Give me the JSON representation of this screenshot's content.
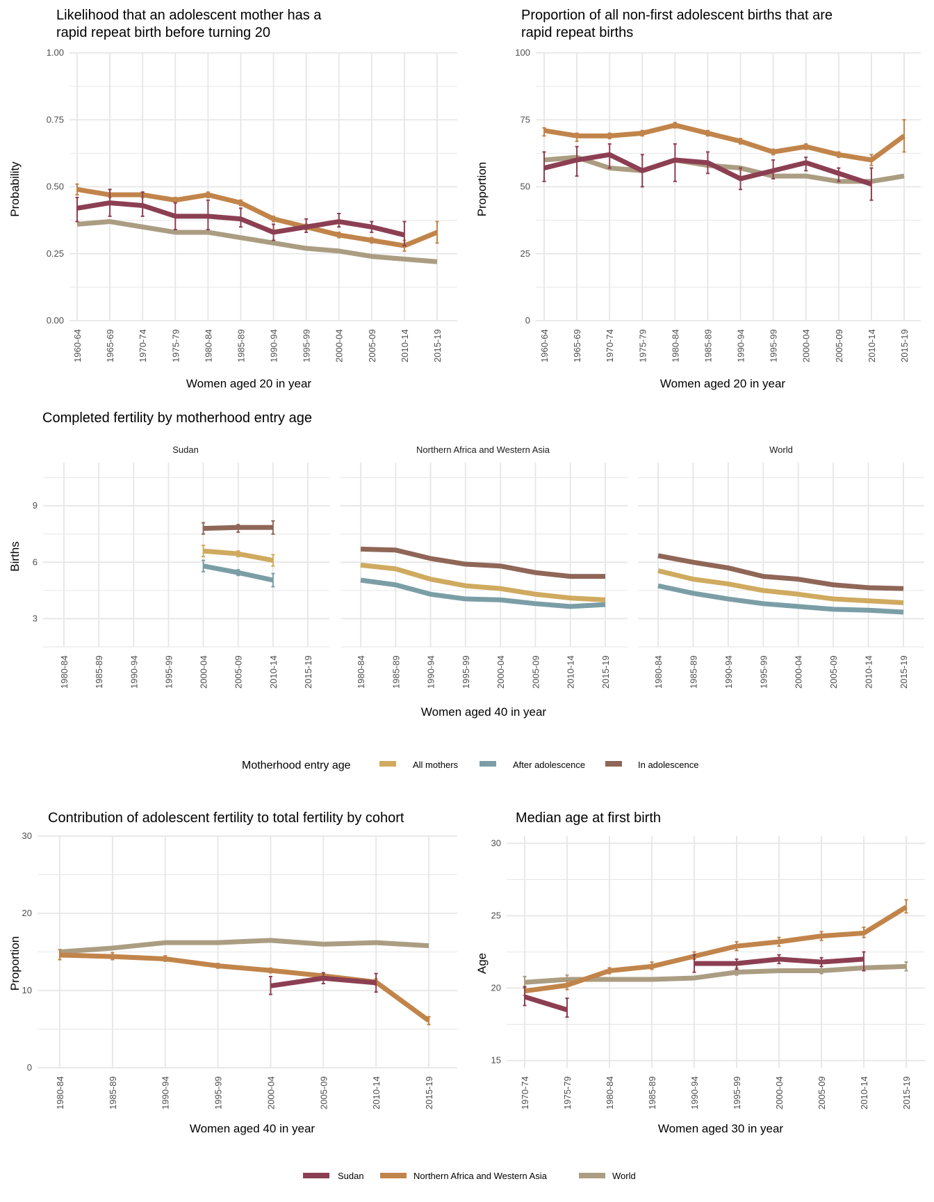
{
  "chart_data": [
    {
      "id": "rapid_repeat_likelihood",
      "type": "line",
      "title": "Likelihood that an adolescent mother has a rapid repeat birth before turning 20",
      "title_lines": [
        "Likelihood that an adolescent mother has a",
        "rapid repeat birth before turning 20"
      ],
      "xlabel": "Women aged 20 in year",
      "ylabel": "Probability",
      "categories": [
        "1960-64",
        "1965-69",
        "1970-74",
        "1975-79",
        "1980-84",
        "1985-89",
        "1990-94",
        "1995-99",
        "2000-04",
        "2005-09",
        "2010-14",
        "2015-19"
      ],
      "ylim": [
        0,
        1
      ],
      "yticks": [
        "0.00",
        "0.25",
        "0.50",
        "0.75",
        "1.00"
      ],
      "ytick_values": [
        0,
        0.25,
        0.5,
        0.75,
        1.0
      ],
      "grid": true,
      "series": [
        {
          "name": "World",
          "values": [
            0.36,
            0.37,
            0.35,
            0.33,
            0.33,
            0.31,
            0.29,
            0.27,
            0.26,
            0.24,
            0.23,
            0.22
          ],
          "err": null
        },
        {
          "name": "Northern Africa and Western Asia",
          "values": [
            0.49,
            0.47,
            0.47,
            0.45,
            0.47,
            0.44,
            0.38,
            0.35,
            0.32,
            0.3,
            0.28,
            0.33
          ],
          "err": [
            [
              0.47,
              0.51
            ],
            [
              0.46,
              0.49
            ],
            [
              0.46,
              0.48
            ],
            [
              0.44,
              0.46
            ],
            [
              0.46,
              0.48
            ],
            [
              0.43,
              0.45
            ],
            [
              0.37,
              0.39
            ],
            [
              0.34,
              0.36
            ],
            [
              0.31,
              0.33
            ],
            [
              0.29,
              0.31
            ],
            [
              0.26,
              0.3
            ],
            [
              0.29,
              0.37
            ]
          ]
        },
        {
          "name": "Sudan",
          "values": [
            0.42,
            0.44,
            0.43,
            0.39,
            0.39,
            0.38,
            0.33,
            0.35,
            0.37,
            0.35,
            0.32,
            null
          ],
          "err": [
            [
              0.37,
              0.46
            ],
            [
              0.39,
              0.49
            ],
            [
              0.39,
              0.48
            ],
            [
              0.34,
              0.44
            ],
            [
              0.34,
              0.45
            ],
            [
              0.35,
              0.42
            ],
            [
              0.3,
              0.36
            ],
            [
              0.33,
              0.38
            ],
            [
              0.35,
              0.4
            ],
            [
              0.33,
              0.37
            ],
            [
              0.28,
              0.37
            ],
            null
          ]
        }
      ]
    },
    {
      "id": "rapid_repeat_proportion",
      "type": "line",
      "title": "Proportion of all non-first adolescent births that are rapid repeat births",
      "title_lines": [
        "Proportion of all non-first adolescent births that are",
        "rapid repeat births"
      ],
      "xlabel": "Women aged 20 in year",
      "ylabel": "Proportion",
      "categories": [
        "1960-64",
        "1965-69",
        "1970-74",
        "1975-79",
        "1980-84",
        "1985-89",
        "1990-94",
        "1995-99",
        "2000-04",
        "2005-09",
        "2010-14",
        "2015-19"
      ],
      "ylim": [
        0,
        100
      ],
      "yticks": [
        "0",
        "25",
        "50",
        "75",
        "100"
      ],
      "ytick_values": [
        0,
        25,
        50,
        75,
        100
      ],
      "grid": true,
      "series": [
        {
          "name": "World",
          "values": [
            60,
            61,
            57,
            56,
            60,
            58,
            57,
            54,
            54,
            52,
            52,
            54
          ],
          "err": null
        },
        {
          "name": "Northern Africa and Western Asia",
          "values": [
            71,
            69,
            69,
            70,
            73,
            70,
            67,
            63,
            65,
            62,
            60,
            69
          ],
          "err": [
            [
              69,
              72
            ],
            [
              67,
              70
            ],
            [
              68,
              70
            ],
            [
              69,
              71
            ],
            [
              72,
              74
            ],
            [
              69,
              71
            ],
            [
              66,
              68
            ],
            [
              62,
              64
            ],
            [
              64,
              66
            ],
            [
              61,
              63
            ],
            [
              58,
              62
            ],
            [
              63,
              75
            ]
          ]
        },
        {
          "name": "Sudan",
          "values": [
            57,
            60,
            62,
            56,
            60,
            59,
            53,
            56,
            59,
            55,
            51,
            null
          ],
          "err": [
            [
              52,
              63
            ],
            [
              54,
              65
            ],
            [
              57,
              66
            ],
            [
              50,
              62
            ],
            [
              52,
              66
            ],
            [
              55,
              63
            ],
            [
              49,
              57
            ],
            [
              53,
              60
            ],
            [
              56,
              61
            ],
            [
              52,
              57
            ],
            [
              45,
              57
            ],
            null
          ]
        }
      ]
    },
    {
      "id": "completed_fertility",
      "type": "line",
      "title": "Completed fertility by motherhood entry age",
      "xlabel": "Women aged 40 in year",
      "ylabel": "Births",
      "categories": [
        "1980-84",
        "1985-89",
        "1990-94",
        "1995-99",
        "2000-04",
        "2005-09",
        "2010-14",
        "2015-19"
      ],
      "ylim": [
        1.5,
        11.3
      ],
      "yticks": [
        "3",
        "6",
        "9"
      ],
      "ytick_values": [
        3,
        6,
        9
      ],
      "grid": true,
      "legend_title": "Motherhood entry age",
      "legend_position": "bottom",
      "legend": [
        "All mothers",
        "After adolescence",
        "In adolescence"
      ],
      "facets": [
        {
          "name": "Sudan",
          "series": [
            {
              "name": "All mothers",
              "values": [
                null,
                null,
                null,
                null,
                6.6,
                6.45,
                6.1,
                null
              ],
              "err": [
                null,
                null,
                null,
                null,
                [
                  6.3,
                  6.9
                ],
                [
                  6.3,
                  6.6
                ],
                [
                  5.8,
                  6.4
                ],
                null
              ]
            },
            {
              "name": "After adolescence",
              "values": [
                null,
                null,
                null,
                null,
                5.8,
                5.45,
                5.05,
                null
              ],
              "err": [
                null,
                null,
                null,
                null,
                [
                  5.5,
                  6.1
                ],
                [
                  5.3,
                  5.6
                ],
                [
                  4.7,
                  5.4
                ],
                null
              ]
            },
            {
              "name": "In adolescence",
              "values": [
                null,
                null,
                null,
                null,
                7.8,
                7.85,
                7.85,
                null
              ],
              "err": [
                null,
                null,
                null,
                null,
                [
                  7.5,
                  8.1
                ],
                [
                  7.6,
                  8.0
                ],
                [
                  7.5,
                  8.2
                ],
                null
              ]
            }
          ]
        },
        {
          "name": "Northern Africa and Western Asia",
          "series": [
            {
              "name": "All mothers",
              "values": [
                5.85,
                5.65,
                5.1,
                4.75,
                4.6,
                4.3,
                4.1,
                4.0
              ],
              "err": null
            },
            {
              "name": "After adolescence",
              "values": [
                5.05,
                4.8,
                4.3,
                4.05,
                4.0,
                3.8,
                3.65,
                3.75
              ],
              "err": null
            },
            {
              "name": "In adolescence",
              "values": [
                6.7,
                6.65,
                6.2,
                5.9,
                5.8,
                5.45,
                5.25,
                5.25
              ],
              "err": null
            }
          ]
        },
        {
          "name": "World",
          "series": [
            {
              "name": "All mothers",
              "values": [
                5.55,
                5.1,
                4.85,
                4.5,
                4.3,
                4.05,
                3.95,
                3.85
              ],
              "err": null
            },
            {
              "name": "After adolescence",
              "values": [
                4.75,
                4.35,
                4.05,
                3.8,
                3.65,
                3.5,
                3.45,
                3.35
              ],
              "err": null
            },
            {
              "name": "In adolescence",
              "values": [
                6.35,
                6.0,
                5.7,
                5.25,
                5.1,
                4.8,
                4.65,
                4.6
              ],
              "err": null
            }
          ]
        }
      ]
    },
    {
      "id": "adolescent_contribution",
      "type": "line",
      "title": "Contribution of adolescent fertility to total fertility by cohort",
      "xlabel": "Women aged 40 in year",
      "ylabel": "Proportion",
      "categories": [
        "1980-84",
        "1985-89",
        "1990-94",
        "1995-99",
        "2000-04",
        "2005-09",
        "2010-14",
        "2015-19"
      ],
      "ylim": [
        0,
        30
      ],
      "yticks": [
        "0",
        "10",
        "20",
        "30"
      ],
      "ytick_values": [
        0,
        10,
        20,
        30
      ],
      "grid": true,
      "series": [
        {
          "name": "World",
          "values": [
            15.0,
            15.5,
            16.2,
            16.2,
            16.5,
            16.0,
            16.2,
            15.8
          ],
          "err": null
        },
        {
          "name": "Northern Africa and Western Asia",
          "values": [
            14.6,
            14.4,
            14.1,
            13.2,
            12.6,
            11.9,
            11.1,
            6.1
          ],
          "err": [
            [
              14.0,
              15.3
            ],
            [
              14.0,
              14.9
            ],
            [
              13.8,
              14.5
            ],
            [
              12.9,
              13.5
            ],
            [
              12.3,
              12.9
            ],
            [
              11.6,
              12.2
            ],
            [
              10.7,
              11.5
            ],
            [
              5.6,
              6.6
            ]
          ]
        },
        {
          "name": "Sudan",
          "values": [
            null,
            null,
            null,
            null,
            10.6,
            11.6,
            11.0,
            null
          ],
          "err": [
            null,
            null,
            null,
            null,
            [
              9.5,
              11.8
            ],
            [
              10.9,
              12.3
            ],
            [
              9.8,
              12.2
            ],
            null
          ]
        }
      ]
    },
    {
      "id": "median_age_first_birth",
      "type": "line",
      "title": "Median age at first birth",
      "xlabel": "Women aged 30 in year",
      "ylabel": "Age",
      "categories": [
        "1970-74",
        "1975-79",
        "1980-84",
        "1985-89",
        "1990-94",
        "1995-99",
        "2000-04",
        "2005-09",
        "2010-14",
        "2015-19"
      ],
      "ylim": [
        14.5,
        30.5
      ],
      "yticks": [
        "15",
        "20",
        "25",
        "30"
      ],
      "ytick_values": [
        15,
        20,
        25,
        30
      ],
      "grid": true,
      "series": [
        {
          "name": "World",
          "values": [
            20.4,
            20.6,
            20.6,
            20.6,
            20.7,
            21.1,
            21.2,
            21.2,
            21.4,
            21.5
          ],
          "err": [
            [
              20.0,
              20.8
            ],
            [
              20.3,
              20.9
            ],
            null,
            null,
            null,
            [
              20.9,
              21.4
            ],
            null,
            [
              21.0,
              21.5
            ],
            null,
            [
              21.2,
              21.8
            ]
          ]
        },
        {
          "name": "Northern Africa and Western Asia",
          "values": [
            19.8,
            20.2,
            21.2,
            21.5,
            22.2,
            22.9,
            23.2,
            23.6,
            23.8,
            25.6
          ],
          "err": [
            [
              19.5,
              20.1
            ],
            [
              19.9,
              20.5
            ],
            [
              21.0,
              21.4
            ],
            [
              21.3,
              21.8
            ],
            [
              22.0,
              22.5
            ],
            [
              22.6,
              23.2
            ],
            [
              22.9,
              23.5
            ],
            [
              23.3,
              23.9
            ],
            [
              23.5,
              24.2
            ],
            [
              25.2,
              26.1
            ]
          ]
        },
        {
          "name": "Sudan",
          "values": [
            19.4,
            18.5,
            null,
            null,
            21.7,
            21.7,
            22.0,
            21.8,
            22.0,
            null
          ],
          "err": [
            [
              18.8,
              20.1
            ],
            [
              18.0,
              19.3
            ],
            null,
            null,
            [
              21.1,
              22.3
            ],
            [
              21.3,
              22.0
            ],
            [
              21.7,
              22.3
            ],
            [
              21.5,
              22.1
            ],
            [
              21.2,
              22.5
            ],
            null
          ]
        }
      ]
    }
  ],
  "legends": {
    "motherhood": {
      "title": "Motherhood entry age",
      "items": [
        {
          "label": "All mothers",
          "color": "#cfaa5f"
        },
        {
          "label": "After adolescence",
          "color": "#7b9ea6"
        },
        {
          "label": "In adolescence",
          "color": "#8f6657"
        }
      ]
    },
    "region": {
      "items": [
        {
          "label": "Sudan",
          "color": "#8c3f52"
        },
        {
          "label": "Northern Africa and Western Asia",
          "color": "#c1844a"
        },
        {
          "label": "World",
          "color": "#ab9d82"
        }
      ]
    }
  },
  "colors": {
    "Sudan": "#8c3f52",
    "Northern Africa and Western Asia": "#c1844a",
    "World": "#ab9d82",
    "All mothers": "#cfaa5f",
    "After adolescence": "#7b9ea6",
    "In adolescence": "#8f6657",
    "grid": "#e6e6e6"
  }
}
